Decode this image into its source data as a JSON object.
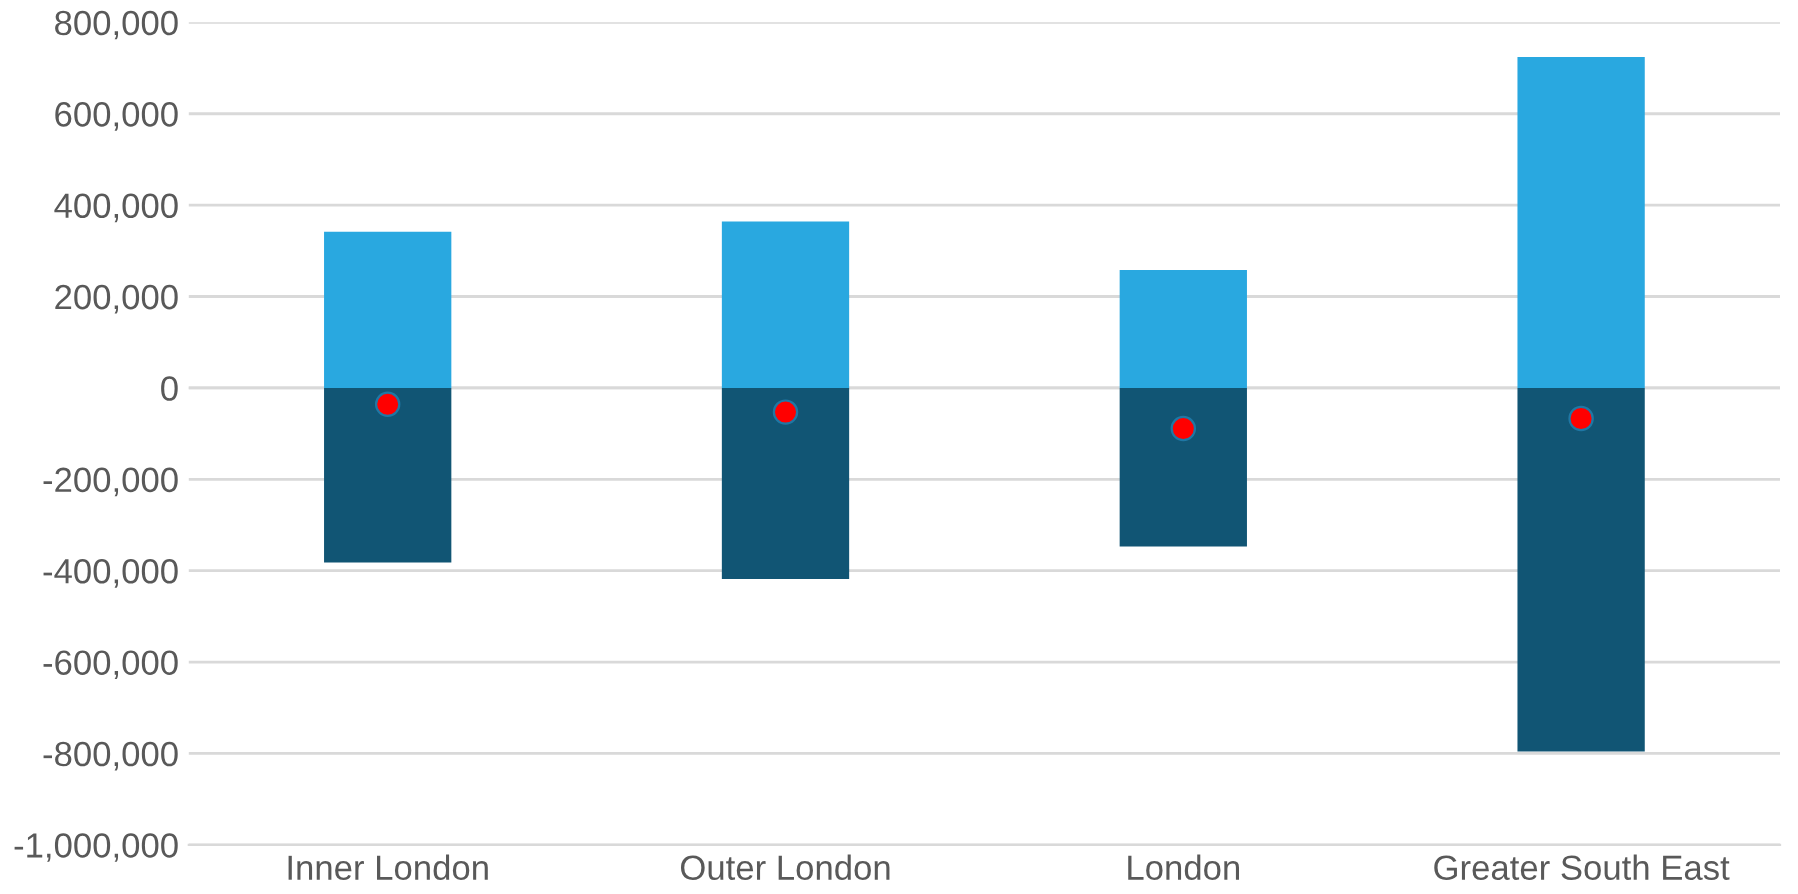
{
  "chart_data": {
    "type": "bar",
    "stacked": true,
    "categories": [
      "Inner London",
      "Outer London",
      "London",
      "Greater South East"
    ],
    "series": [
      {
        "color": "#29a8e0",
        "values": [
          342000,
          364000,
          258000,
          724000
        ]
      },
      {
        "color": "#115574",
        "values": [
          -382000,
          -418000,
          -347000,
          -796000
        ]
      },
      {
        "type": "scatter",
        "color": "#ff0000",
        "x": [
          "Inner London",
          "Outer London",
          "London",
          "Greater South East"
        ],
        "values": [
          -36000,
          -53000,
          -89000,
          -67000
        ]
      }
    ],
    "ylim": [
      -1000000,
      800000
    ],
    "yticks": [
      {
        "value": -1000000,
        "label": "-1,000,000"
      },
      {
        "value": -800000,
        "label": "-800,000"
      },
      {
        "value": -600000,
        "label": "-600,000"
      },
      {
        "value": -400000,
        "label": "-400,000"
      },
      {
        "value": -200000,
        "label": "-200,000"
      },
      0,
      {
        "value": 200000,
        "label": "200,000"
      },
      {
        "value": 400000,
        "label": "400,000"
      },
      {
        "value": 600000,
        "label": "600,000"
      },
      {
        "value": 800000,
        "label": "800,000"
      }
    ],
    "grid": "y",
    "marker": "circle"
  }
}
